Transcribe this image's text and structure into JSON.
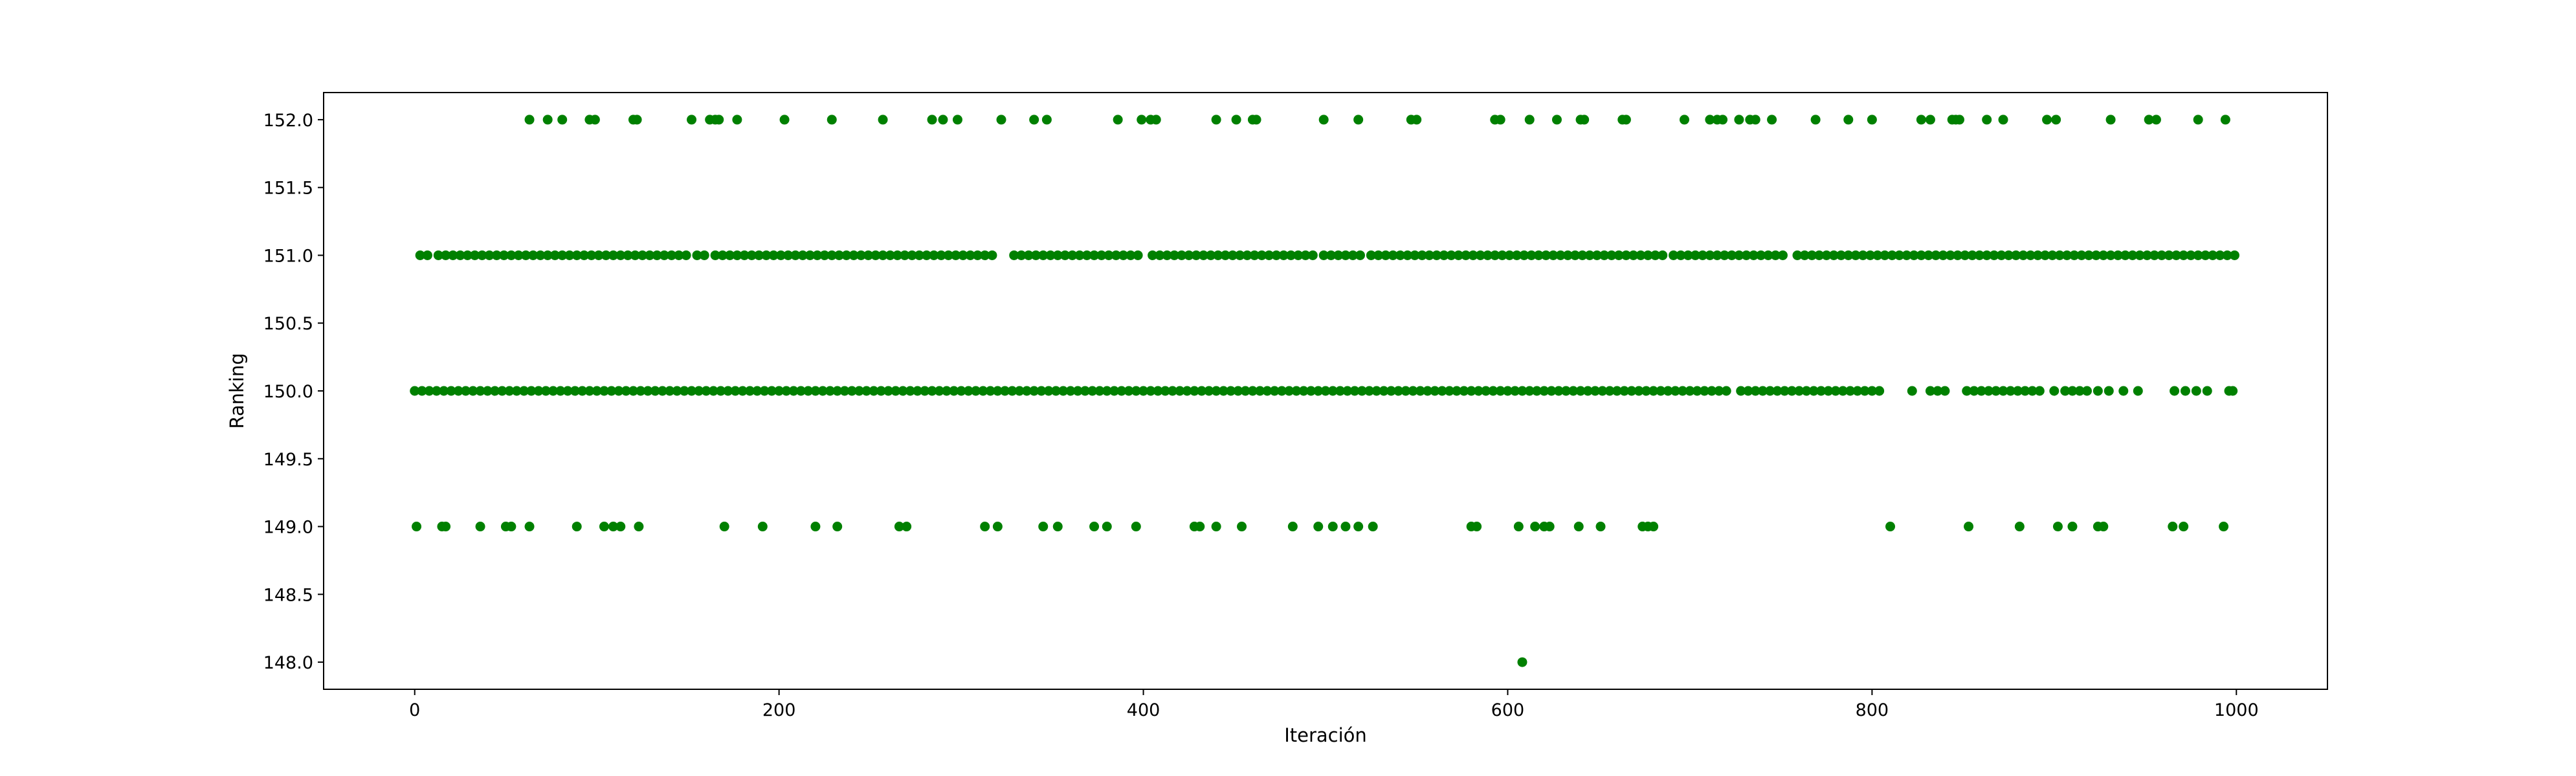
{
  "chart_data": {
    "type": "scatter",
    "title": "",
    "xlabel": "Iteración",
    "ylabel": "Ranking",
    "xlim": [
      -50,
      1050
    ],
    "ylim": [
      147.8,
      152.2
    ],
    "xticks": [
      0,
      200,
      400,
      600,
      800,
      1000
    ],
    "xtick_labels": [
      "0",
      "200",
      "400",
      "600",
      "800",
      "1000"
    ],
    "yticks": [
      148.0,
      148.5,
      149.0,
      149.5,
      150.0,
      150.5,
      151.0,
      151.5,
      152.0
    ],
    "ytick_labels": [
      "148.0",
      "148.5",
      "149.0",
      "149.5",
      "150.0",
      "150.5",
      "151.0",
      "151.5",
      "152.0"
    ],
    "grid": false,
    "marker_color": "#008000",
    "series": [
      {
        "name": "Ranking",
        "points_by_level": [
          {
            "y": 152,
            "x": [
              63,
              73,
              81,
              96,
              99,
              120,
              122,
              152,
              162,
              165,
              167,
              177,
              203,
              229,
              257,
              284,
              290,
              298,
              322,
              340,
              347,
              386,
              399,
              404,
              407,
              440,
              451,
              460,
              462,
              499,
              518,
              547,
              550,
              593,
              596,
              612,
              627,
              640,
              642,
              663,
              665,
              697,
              711,
              715,
              718,
              727,
              733,
              736,
              745,
              769,
              787,
              800,
              827,
              832,
              844,
              846,
              848,
              863,
              872,
              896,
              901,
              931,
              952,
              956,
              979,
              994
            ]
          },
          {
            "y": 151,
            "x": [
              3,
              7,
              13,
              17,
              21,
              25,
              29,
              33,
              37,
              41,
              45,
              49,
              53,
              57,
              61,
              65,
              69,
              73,
              77,
              81,
              85,
              89,
              93,
              97,
              101,
              105,
              109,
              113,
              117,
              121,
              125,
              129,
              133,
              137,
              141,
              145,
              149,
              155,
              159,
              165,
              169,
              173,
              177,
              181,
              185,
              189,
              193,
              197,
              201,
              205,
              209,
              213,
              217,
              221,
              225,
              229,
              233,
              237,
              241,
              245,
              249,
              253,
              257,
              261,
              265,
              269,
              273,
              277,
              281,
              285,
              289,
              293,
              297,
              301,
              305,
              309,
              313,
              317,
              329,
              333,
              337,
              341,
              345,
              349,
              353,
              357,
              361,
              365,
              369,
              373,
              377,
              381,
              385,
              389,
              393,
              397,
              405,
              409,
              413,
              417,
              421,
              425,
              429,
              433,
              437,
              441,
              445,
              449,
              453,
              457,
              461,
              465,
              469,
              473,
              477,
              481,
              485,
              489,
              493,
              499,
              503,
              507,
              511,
              515,
              519,
              525,
              529,
              533,
              537,
              541,
              545,
              549,
              553,
              557,
              561,
              565,
              569,
              573,
              577,
              581,
              585,
              589,
              593,
              597,
              601,
              605,
              609,
              613,
              617,
              621,
              625,
              629,
              633,
              637,
              641,
              645,
              649,
              653,
              657,
              661,
              665,
              669,
              673,
              677,
              681,
              685,
              691,
              695,
              699,
              703,
              707,
              711,
              715,
              719,
              723,
              727,
              731,
              735,
              739,
              743,
              747,
              751,
              759,
              763,
              767,
              771,
              775,
              779,
              783,
              787,
              791,
              795,
              799,
              803,
              807,
              811,
              815,
              819,
              823,
              827,
              831,
              835,
              839,
              843,
              847,
              851,
              855,
              859,
              863,
              867,
              871,
              875,
              879,
              883,
              887,
              891,
              895,
              899,
              903,
              907,
              911,
              915,
              919,
              923,
              927,
              931,
              935,
              939,
              943,
              947,
              951,
              955,
              959,
              963,
              967,
              971,
              975,
              979,
              983,
              987,
              991,
              995,
              999
            ]
          },
          {
            "y": 150,
            "x": [
              0,
              4,
              8,
              12,
              16,
              20,
              24,
              28,
              32,
              36,
              40,
              44,
              48,
              52,
              56,
              60,
              64,
              68,
              72,
              76,
              80,
              84,
              88,
              92,
              96,
              100,
              104,
              108,
              112,
              116,
              120,
              124,
              128,
              132,
              136,
              140,
              144,
              148,
              152,
              156,
              160,
              164,
              168,
              172,
              176,
              180,
              184,
              188,
              192,
              196,
              200,
              204,
              208,
              212,
              216,
              220,
              224,
              228,
              232,
              236,
              240,
              244,
              248,
              252,
              256,
              260,
              264,
              268,
              272,
              276,
              280,
              284,
              288,
              292,
              296,
              300,
              304,
              308,
              312,
              316,
              320,
              324,
              328,
              332,
              336,
              340,
              344,
              348,
              352,
              356,
              360,
              364,
              368,
              372,
              376,
              380,
              384,
              388,
              392,
              396,
              400,
              404,
              408,
              412,
              416,
              420,
              424,
              428,
              432,
              436,
              440,
              444,
              448,
              452,
              456,
              460,
              464,
              468,
              472,
              476,
              480,
              484,
              488,
              492,
              496,
              500,
              504,
              508,
              512,
              516,
              520,
              524,
              528,
              532,
              536,
              540,
              544,
              548,
              552,
              556,
              560,
              564,
              568,
              572,
              576,
              580,
              584,
              588,
              592,
              596,
              600,
              604,
              608,
              612,
              616,
              620,
              624,
              628,
              632,
              636,
              640,
              644,
              648,
              652,
              656,
              660,
              664,
              668,
              672,
              676,
              680,
              684,
              688,
              692,
              696,
              700,
              704,
              708,
              712,
              716,
              720,
              728,
              732,
              736,
              740,
              744,
              748,
              752,
              756,
              760,
              764,
              768,
              772,
              776,
              780,
              784,
              788,
              792,
              796,
              800,
              804,
              822,
              832,
              836,
              840,
              852,
              856,
              860,
              864,
              868,
              872,
              876,
              880,
              884,
              888,
              892,
              900,
              906,
              910,
              914,
              918,
              924,
              930,
              938,
              946,
              966,
              972,
              978,
              984,
              996,
              998
            ]
          },
          {
            "y": 149,
            "x": [
              1,
              15,
              17,
              36,
              50,
              53,
              63,
              89,
              104,
              109,
              113,
              123,
              170,
              191,
              220,
              232,
              266,
              270,
              313,
              320,
              345,
              353,
              373,
              380,
              396,
              428,
              431,
              440,
              454,
              482,
              496,
              504,
              511,
              518,
              526,
              580,
              583,
              606,
              615,
              620,
              623,
              639,
              651,
              674,
              677,
              680,
              810,
              853,
              881,
              902,
              910,
              924,
              927,
              965,
              971,
              993
            ]
          },
          {
            "y": 148,
            "x": [
              608
            ]
          }
        ]
      }
    ]
  }
}
